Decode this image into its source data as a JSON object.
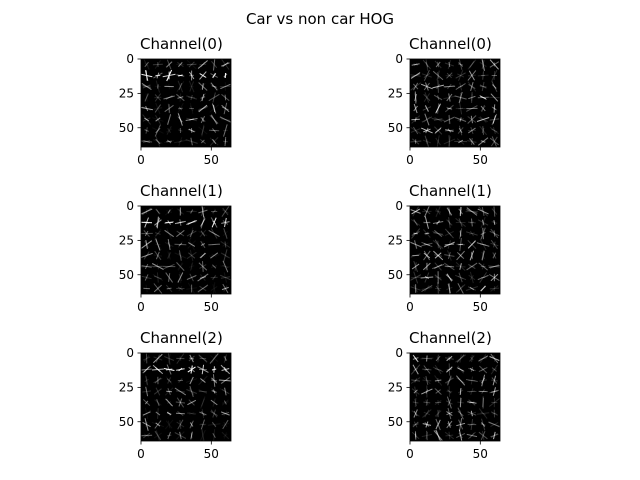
{
  "figure": {
    "title": "Car vs non car HOG",
    "background": "#ffffff"
  },
  "panels": [
    {
      "id": "car-ch0",
      "column": "car",
      "title": "Channel(0)",
      "image": "hog-visualization",
      "image_size": [
        64,
        64
      ],
      "x_ticks": [
        "0",
        "50"
      ],
      "y_ticks": [
        "0",
        "25",
        "50"
      ]
    },
    {
      "id": "noncar-ch0",
      "column": "non-car",
      "title": "Channel(0)",
      "image": "hog-visualization",
      "image_size": [
        64,
        64
      ],
      "x_ticks": [
        "0",
        "50"
      ],
      "y_ticks": [
        "0",
        "25",
        "50"
      ]
    },
    {
      "id": "car-ch1",
      "column": "car",
      "title": "Channel(1)",
      "image": "hog-visualization",
      "image_size": [
        64,
        64
      ],
      "x_ticks": [
        "0",
        "50"
      ],
      "y_ticks": [
        "0",
        "25",
        "50"
      ]
    },
    {
      "id": "noncar-ch1",
      "column": "non-car",
      "title": "Channel(1)",
      "image": "hog-visualization",
      "image_size": [
        64,
        64
      ],
      "x_ticks": [
        "0",
        "50"
      ],
      "y_ticks": [
        "0",
        "25",
        "50"
      ]
    },
    {
      "id": "car-ch2",
      "column": "car",
      "title": "Channel(2)",
      "image": "hog-visualization",
      "image_size": [
        64,
        64
      ],
      "x_ticks": [
        "0",
        "50"
      ],
      "y_ticks": [
        "0",
        "25",
        "50"
      ]
    },
    {
      "id": "noncar-ch2",
      "column": "non-car",
      "title": "Channel(2)",
      "image": "hog-visualization",
      "image_size": [
        64,
        64
      ],
      "x_ticks": [
        "0",
        "50"
      ],
      "y_ticks": [
        "0",
        "25",
        "50"
      ]
    }
  ],
  "colors": {
    "image_background": "#000000",
    "hog_stroke": "#ffffff",
    "axis": "#000000"
  }
}
